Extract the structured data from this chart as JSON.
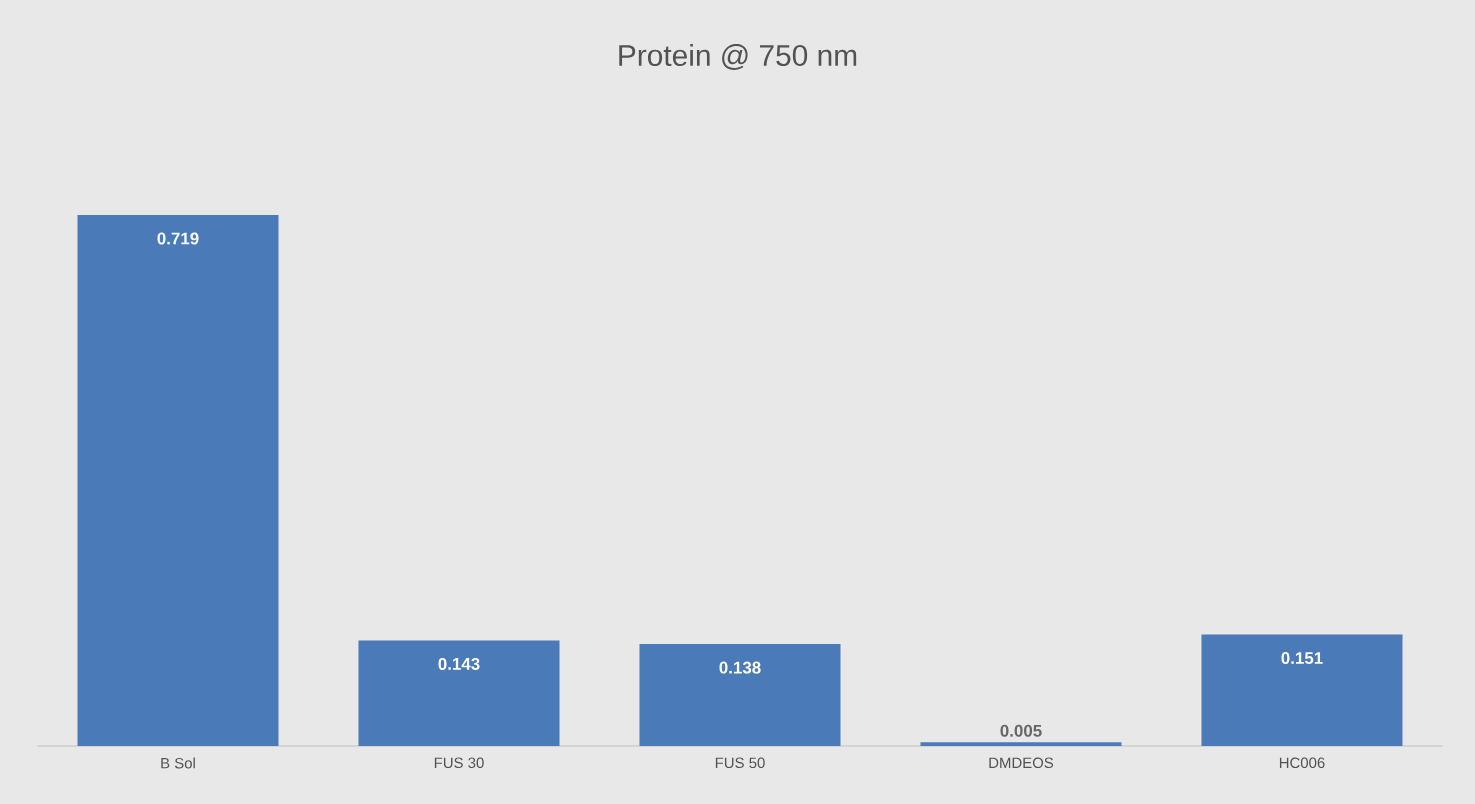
{
  "chart_data": {
    "type": "bar",
    "title": "Protein @ 750 nm",
    "categories": [
      "B Sol",
      "FUS 30",
      "FUS 50",
      "DMDEOS",
      "HC006"
    ],
    "values": [
      0.719,
      0.143,
      0.138,
      0.005,
      0.151
    ],
    "color": "#4a7ab8",
    "data_labels": true
  }
}
